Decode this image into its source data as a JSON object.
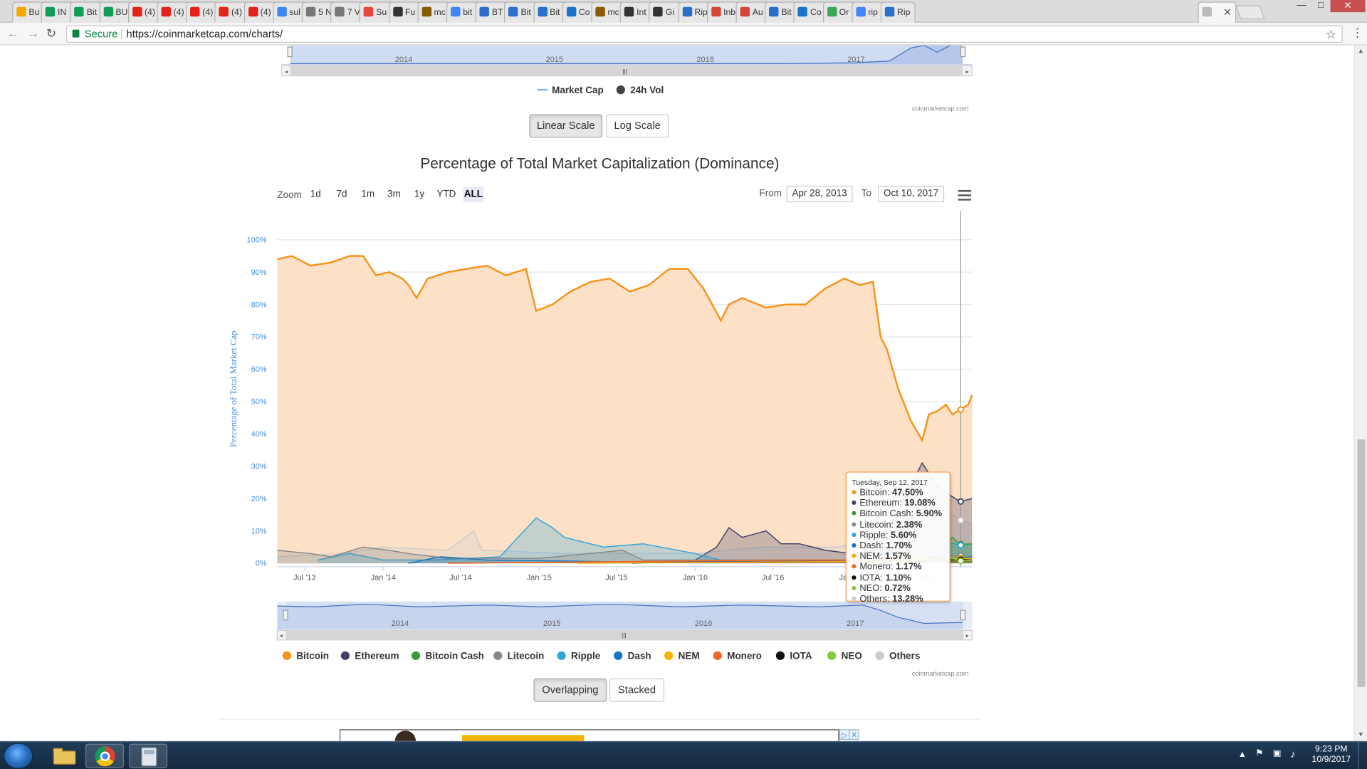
{
  "browser": {
    "tabs": [
      {
        "title": "Bu",
        "color": "#f2a600"
      },
      {
        "title": "IN",
        "color": "#0f9d58"
      },
      {
        "title": "Bit",
        "color": "#0f9d58"
      },
      {
        "title": "BU",
        "color": "#0f9d58"
      },
      {
        "title": "(4)",
        "color": "#e62117"
      },
      {
        "title": "(4)",
        "color": "#e62117"
      },
      {
        "title": "(4)",
        "color": "#e62117"
      },
      {
        "title": "(4)",
        "color": "#e62117"
      },
      {
        "title": "(4)",
        "color": "#e62117"
      },
      {
        "title": "sul",
        "color": "#4285f4"
      },
      {
        "title": "5 N",
        "color": "#777777"
      },
      {
        "title": "7 V",
        "color": "#777777"
      },
      {
        "title": "Su",
        "color": "#e8453c"
      },
      {
        "title": "Fu",
        "color": "#333333"
      },
      {
        "title": "mc",
        "color": "#8a5a00"
      },
      {
        "title": "bit",
        "color": "#4285f4"
      },
      {
        "title": "BT",
        "color": "#2a6fc9"
      },
      {
        "title": "Bit",
        "color": "#2a6fc9"
      },
      {
        "title": "Bit",
        "color": "#2a6fc9"
      },
      {
        "title": "Co",
        "color": "#1a73c8"
      },
      {
        "title": "mc",
        "color": "#8a5a00"
      },
      {
        "title": "Int",
        "color": "#333333"
      },
      {
        "title": "Gi",
        "color": "#333333"
      },
      {
        "title": "Rip",
        "color": "#2a6fc9"
      },
      {
        "title": "Inb",
        "color": "#d44638"
      },
      {
        "title": "Au",
        "color": "#d44638"
      },
      {
        "title": "Bit",
        "color": "#2a6fc9"
      },
      {
        "title": "Co",
        "color": "#1a73c8"
      },
      {
        "title": "Or",
        "color": "#3aa757"
      },
      {
        "title": "rip",
        "color": "#4285f4"
      },
      {
        "title": "Rip",
        "color": "#2a6fc9"
      },
      {
        "title": "",
        "color": "#bbbbbb"
      }
    ],
    "secure_label": "Secure",
    "url": "https://coinmarketcap.com/charts/",
    "back_icon": "back-arrow-icon",
    "forward_icon": "forward-arrow-icon",
    "reload_icon": "reload-icon",
    "star_icon": "star-icon",
    "menu_icon": "kebab-menu-icon"
  },
  "top_chart": {
    "navigator_years": [
      "2014",
      "2015",
      "2016",
      "2017"
    ],
    "legend": [
      {
        "label": "Market Cap",
        "color": "#7cb5ec",
        "marker": "line"
      },
      {
        "label": "24h Vol",
        "color": "#434348",
        "marker": "dot"
      }
    ],
    "credit": "coinmarketcap.com",
    "scale_buttons": {
      "linear": "Linear Scale",
      "log": "Log Scale",
      "active": "linear"
    }
  },
  "dominance": {
    "zoom_label": "Zoom",
    "zoom_buttons": [
      "1d",
      "7d",
      "1m",
      "3m",
      "1y",
      "YTD",
      "ALL"
    ],
    "zoom_selected": "ALL",
    "from_label": "From",
    "from_value": "Apr 28, 2013",
    "to_label": "To",
    "to_value": "Oct 10, 2017",
    "menu_icon": "hamburger-menu-icon",
    "credit": "coinmarketcap.com",
    "mode_buttons": {
      "overlapping": "Overlapping",
      "stacked": "Stacked",
      "active": "overlapping"
    },
    "navigator_years": [
      "2014",
      "2015",
      "2016",
      "2017"
    ],
    "tooltip": {
      "date": "Tuesday, Sep 12, 2017",
      "rows": [
        {
          "name": "Bitcoin",
          "value": "47.50%",
          "color": "#f7931a"
        },
        {
          "name": "Ethereum",
          "value": "19.08%",
          "color": "#434368"
        },
        {
          "name": "Bitcoin Cash",
          "value": "5.90%",
          "color": "#3a9a3a"
        },
        {
          "name": "Litecoin",
          "value": "2.38%",
          "color": "#888888"
        },
        {
          "name": "Ripple",
          "value": "5.60%",
          "color": "#2ea7d9"
        },
        {
          "name": "Dash",
          "value": "1.70%",
          "color": "#1c75bc"
        },
        {
          "name": "NEM",
          "value": "1.57%",
          "color": "#f5b300"
        },
        {
          "name": "Monero",
          "value": "1.17%",
          "color": "#f26822"
        },
        {
          "name": "IOTA",
          "value": "1.10%",
          "color": "#111111"
        },
        {
          "name": "NEO",
          "value": "0.72%",
          "color": "#8cc63f"
        },
        {
          "name": "Others",
          "value": "13.28%",
          "color": "#cccccc"
        }
      ]
    }
  },
  "chart_data": {
    "type": "area",
    "title": "Percentage of Total Market Capitalization (Dominance)",
    "ylabel": "Percentage of Total Market Cap",
    "xlabel": "",
    "x_range": [
      "2013-04-28",
      "2017-10-10"
    ],
    "ylim": [
      0,
      100
    ],
    "y_ticks": [
      "0%",
      "10%",
      "20%",
      "30%",
      "40%",
      "50%",
      "60%",
      "70%",
      "80%",
      "90%",
      "100%"
    ],
    "x_ticks": [
      {
        "label": "Jul '13",
        "date": "2013-07-01"
      },
      {
        "label": "Jan '14",
        "date": "2014-01-01"
      },
      {
        "label": "Jul '14",
        "date": "2014-07-01"
      },
      {
        "label": "Jan '15",
        "date": "2015-01-01"
      },
      {
        "label": "Jul '15",
        "date": "2015-07-01"
      },
      {
        "label": "Jan '16",
        "date": "2016-01-01"
      },
      {
        "label": "Jul '16",
        "date": "2016-07-01"
      },
      {
        "label": "Jan '17",
        "date": "2017-01-01"
      },
      {
        "label": "Jul '17",
        "date": "2017-07-01"
      }
    ],
    "grid": true,
    "legend_position": "bottom",
    "series": [
      {
        "name": "Bitcoin",
        "color": "#f7931a",
        "points": [
          [
            "2013-04-28",
            94
          ],
          [
            "2013-06-01",
            95
          ],
          [
            "2013-07-15",
            92
          ],
          [
            "2013-09-01",
            93
          ],
          [
            "2013-10-15",
            95
          ],
          [
            "2013-11-15",
            95
          ],
          [
            "2013-12-15",
            89
          ],
          [
            "2014-01-15",
            90
          ],
          [
            "2014-02-15",
            88
          ],
          [
            "2014-03-01",
            86
          ],
          [
            "2014-03-20",
            82
          ],
          [
            "2014-04-15",
            88
          ],
          [
            "2014-06-01",
            90
          ],
          [
            "2014-07-15",
            91
          ],
          [
            "2014-09-01",
            92
          ],
          [
            "2014-10-15",
            89
          ],
          [
            "2014-12-01",
            91
          ],
          [
            "2014-12-25",
            78
          ],
          [
            "2015-02-01",
            80
          ],
          [
            "2015-03-15",
            84
          ],
          [
            "2015-05-01",
            87
          ],
          [
            "2015-06-15",
            88
          ],
          [
            "2015-08-01",
            84
          ],
          [
            "2015-09-15",
            86
          ],
          [
            "2015-11-01",
            91
          ],
          [
            "2015-12-15",
            91
          ],
          [
            "2016-01-20",
            85
          ],
          [
            "2016-02-10",
            80
          ],
          [
            "2016-03-01",
            75
          ],
          [
            "2016-03-20",
            80
          ],
          [
            "2016-04-20",
            82
          ],
          [
            "2016-06-15",
            79
          ],
          [
            "2016-08-01",
            80
          ],
          [
            "2016-09-15",
            80
          ],
          [
            "2016-11-01",
            85
          ],
          [
            "2016-12-15",
            88
          ],
          [
            "2017-01-20",
            86
          ],
          [
            "2017-02-20",
            87
          ],
          [
            "2017-03-10",
            70
          ],
          [
            "2017-03-25",
            66
          ],
          [
            "2017-04-20",
            54
          ],
          [
            "2017-05-20",
            44
          ],
          [
            "2017-06-15",
            38
          ],
          [
            "2017-07-01",
            46
          ],
          [
            "2017-07-20",
            47
          ],
          [
            "2017-08-10",
            49
          ],
          [
            "2017-08-25",
            46
          ],
          [
            "2017-09-12",
            47.5
          ],
          [
            "2017-10-01",
            49
          ],
          [
            "2017-10-10",
            52
          ]
        ]
      },
      {
        "name": "Ethereum",
        "color": "#434368",
        "points": [
          [
            "2015-08-07",
            0
          ],
          [
            "2016-01-01",
            1
          ],
          [
            "2016-02-20",
            5
          ],
          [
            "2016-03-20",
            11
          ],
          [
            "2016-04-20",
            8
          ],
          [
            "2016-06-15",
            10
          ],
          [
            "2016-07-20",
            6
          ],
          [
            "2016-09-01",
            6
          ],
          [
            "2016-11-01",
            4
          ],
          [
            "2017-01-01",
            3
          ],
          [
            "2017-03-01",
            4
          ],
          [
            "2017-03-25",
            10
          ],
          [
            "2017-05-01",
            19
          ],
          [
            "2017-06-15",
            31
          ],
          [
            "2017-07-20",
            24
          ],
          [
            "2017-08-20",
            21
          ],
          [
            "2017-09-12",
            19.08
          ],
          [
            "2017-10-10",
            20
          ]
        ]
      },
      {
        "name": "Bitcoin Cash",
        "color": "#3a9a3a",
        "points": [
          [
            "2017-08-01",
            0
          ],
          [
            "2017-08-10",
            6
          ],
          [
            "2017-08-25",
            8
          ],
          [
            "2017-09-12",
            5.9
          ],
          [
            "2017-10-10",
            6
          ]
        ]
      },
      {
        "name": "Litecoin",
        "color": "#888888",
        "points": [
          [
            "2013-04-28",
            4
          ],
          [
            "2013-07-15",
            3
          ],
          [
            "2013-09-01",
            2
          ],
          [
            "2013-11-15",
            5
          ],
          [
            "2014-01-15",
            4
          ],
          [
            "2014-03-01",
            3
          ],
          [
            "2014-06-01",
            1.5
          ],
          [
            "2015-01-01",
            1.5
          ],
          [
            "2015-07-15",
            4
          ],
          [
            "2015-09-01",
            1
          ],
          [
            "2016-06-01",
            1
          ],
          [
            "2017-03-01",
            1
          ],
          [
            "2017-06-01",
            2
          ],
          [
            "2017-09-12",
            2.38
          ],
          [
            "2017-10-10",
            2
          ]
        ]
      },
      {
        "name": "Ripple",
        "color": "#2ea7d9",
        "points": [
          [
            "2013-08-01",
            1
          ],
          [
            "2013-10-15",
            3
          ],
          [
            "2014-01-01",
            1
          ],
          [
            "2014-05-01",
            1
          ],
          [
            "2014-10-01",
            2
          ],
          [
            "2014-12-25",
            14
          ],
          [
            "2015-02-01",
            11
          ],
          [
            "2015-03-01",
            8
          ],
          [
            "2015-06-01",
            5
          ],
          [
            "2015-09-01",
            6
          ],
          [
            "2016-01-01",
            3
          ],
          [
            "2016-03-01",
            1
          ],
          [
            "2016-08-01",
            1
          ],
          [
            "2016-12-01",
            1
          ],
          [
            "2017-01-15",
            1
          ],
          [
            "2017-04-01",
            9
          ],
          [
            "2017-05-20",
            14
          ],
          [
            "2017-06-20",
            10
          ],
          [
            "2017-08-01",
            7
          ],
          [
            "2017-09-12",
            5.6
          ],
          [
            "2017-10-10",
            6
          ]
        ]
      },
      {
        "name": "Dash",
        "color": "#1c75bc",
        "points": [
          [
            "2014-03-01",
            0
          ],
          [
            "2014-05-15",
            2
          ],
          [
            "2014-09-01",
            1
          ],
          [
            "2015-06-01",
            0.5
          ],
          [
            "2016-06-01",
            0.5
          ],
          [
            "2017-02-15",
            1
          ],
          [
            "2017-03-25",
            4
          ],
          [
            "2017-05-01",
            2
          ],
          [
            "2017-09-12",
            1.7
          ],
          [
            "2017-10-10",
            2
          ]
        ]
      },
      {
        "name": "NEM",
        "color": "#f5b300",
        "points": [
          [
            "2015-04-01",
            0
          ],
          [
            "2016-12-01",
            0.5
          ],
          [
            "2017-03-15",
            1
          ],
          [
            "2017-05-01",
            3
          ],
          [
            "2017-06-15",
            2
          ],
          [
            "2017-09-12",
            1.57
          ],
          [
            "2017-10-10",
            1.5
          ]
        ]
      },
      {
        "name": "Monero",
        "color": "#f26822",
        "points": [
          [
            "2014-06-01",
            0
          ],
          [
            "2016-08-01",
            1
          ],
          [
            "2016-12-01",
            1
          ],
          [
            "2017-03-01",
            1
          ],
          [
            "2017-09-12",
            1.17
          ],
          [
            "2017-10-10",
            1
          ]
        ]
      },
      {
        "name": "IOTA",
        "color": "#111111",
        "points": [
          [
            "2017-06-15",
            0
          ],
          [
            "2017-07-01",
            2
          ],
          [
            "2017-08-15",
            1
          ],
          [
            "2017-09-12",
            1.1
          ],
          [
            "2017-10-10",
            1
          ]
        ]
      },
      {
        "name": "NEO",
        "color": "#8cc63f",
        "points": [
          [
            "2017-03-01",
            0
          ],
          [
            "2017-06-01",
            1
          ],
          [
            "2017-08-15",
            2
          ],
          [
            "2017-09-12",
            0.72
          ],
          [
            "2017-10-10",
            1
          ]
        ]
      },
      {
        "name": "Others",
        "color": "#cccccc",
        "points": [
          [
            "2013-04-28",
            2
          ],
          [
            "2013-10-01",
            3
          ],
          [
            "2014-01-01",
            5
          ],
          [
            "2014-06-01",
            4
          ],
          [
            "2014-08-01",
            10
          ],
          [
            "2014-08-20",
            4
          ],
          [
            "2015-03-01",
            3
          ],
          [
            "2015-09-01",
            3
          ],
          [
            "2016-01-01",
            3
          ],
          [
            "2016-06-01",
            5
          ],
          [
            "2016-12-01",
            5
          ],
          [
            "2017-03-01",
            8
          ],
          [
            "2017-05-20",
            15
          ],
          [
            "2017-06-15",
            20
          ],
          [
            "2017-07-20",
            18
          ],
          [
            "2017-09-12",
            13.28
          ],
          [
            "2017-10-10",
            12
          ]
        ]
      }
    ]
  },
  "taskbar": {
    "start_icon": "windows-start-icon",
    "apps": [
      "file-explorer-icon",
      "chrome-icon",
      "calculator-icon"
    ],
    "time": "9:23 PM",
    "date": "10/9/2017"
  }
}
